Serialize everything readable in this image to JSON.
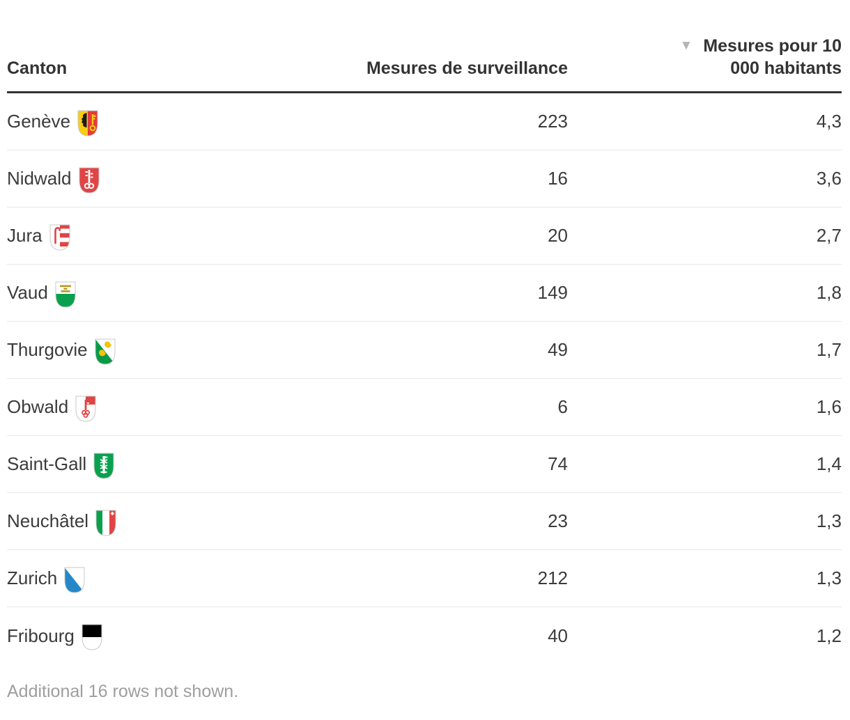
{
  "table": {
    "header": {
      "canton_label": "Canton",
      "measures_label": "Mesures de surveillance",
      "percap_label_line1": "Mesures pour 10",
      "percap_label_line2": "000 habitants",
      "sort_arrow": "▼",
      "sorted_column": "Mesures pour 10 000 habitants",
      "sort_direction": "descending"
    },
    "rows": [
      {
        "canton": "Genève",
        "flag": "geneve",
        "measures": "223",
        "per10k": "4,3"
      },
      {
        "canton": "Nidwald",
        "flag": "nidwald",
        "measures": "16",
        "per10k": "3,6"
      },
      {
        "canton": "Jura",
        "flag": "jura",
        "measures": "20",
        "per10k": "2,7"
      },
      {
        "canton": "Vaud",
        "flag": "vaud",
        "measures": "149",
        "per10k": "1,8"
      },
      {
        "canton": "Thurgovie",
        "flag": "thurgovie",
        "measures": "49",
        "per10k": "1,7"
      },
      {
        "canton": "Obwald",
        "flag": "obwald",
        "measures": "6",
        "per10k": "1,6"
      },
      {
        "canton": "Saint-Gall",
        "flag": "saint-gall",
        "measures": "74",
        "per10k": "1,4"
      },
      {
        "canton": "Neuchâtel",
        "flag": "neuchatel",
        "measures": "23",
        "per10k": "1,3"
      },
      {
        "canton": "Zurich",
        "flag": "zurich",
        "measures": "212",
        "per10k": "1,3"
      },
      {
        "canton": "Fribourg",
        "flag": "fribourg",
        "measures": "40",
        "per10k": "1,2"
      }
    ],
    "footer_note": "Additional 16 rows not shown."
  },
  "chart_data": {
    "type": "table",
    "title": "",
    "columns": [
      "Canton",
      "Mesures de surveillance",
      "Mesures pour 10 000 habitants"
    ],
    "rows": [
      [
        "Genève",
        223,
        4.3
      ],
      [
        "Nidwald",
        16,
        3.6
      ],
      [
        "Jura",
        20,
        2.7
      ],
      [
        "Vaud",
        149,
        1.8
      ],
      [
        "Thurgovie",
        49,
        1.7
      ],
      [
        "Obwald",
        6,
        1.6
      ],
      [
        "Saint-Gall",
        74,
        1.4
      ],
      [
        "Neuchâtel",
        23,
        1.3
      ],
      [
        "Zurich",
        212,
        1.3
      ],
      [
        "Fribourg",
        40,
        1.2
      ]
    ],
    "sorted_by": "Mesures pour 10 000 habitants",
    "sort_direction": "descending",
    "hidden_rows_note": "Additional 16 rows not shown.",
    "decimal_separator": ","
  },
  "colors": {
    "text": "#3b3b3b",
    "header_text": "#333333",
    "header_rule": "#333333",
    "row_divider": "#e8e8e8",
    "sort_arrow": "#b4b4b4",
    "footer_text": "#9e9e9e"
  }
}
